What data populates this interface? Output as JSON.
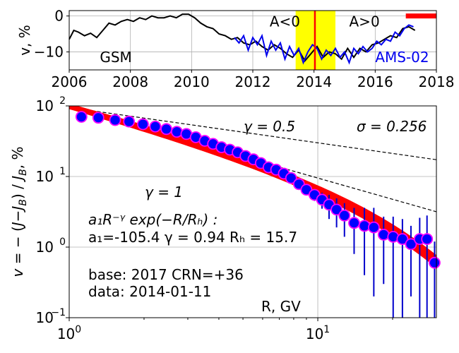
{
  "chart_data": [
    {
      "type": "line",
      "xlim": [
        2006,
        2018
      ],
      "ylim": [
        -15,
        1.5
      ],
      "ylabel": "v, %",
      "xticks": [
        2006,
        2008,
        2010,
        2012,
        2014,
        2016,
        2018
      ],
      "yticks": [
        0,
        -10
      ],
      "ytick_labels": [
        "0",
        "−10"
      ],
      "grid": true,
      "series": [
        {
          "name": "GSM",
          "color": "#000000",
          "x": [
            2006.0,
            2006.15,
            2006.3,
            2006.5,
            2006.7,
            2006.9,
            2007.1,
            2007.3,
            2007.5,
            2007.7,
            2007.9,
            2008.1,
            2008.3,
            2008.5,
            2008.7,
            2008.9,
            2009.1,
            2009.3,
            2009.5,
            2009.7,
            2009.9,
            2010.1,
            2010.3,
            2010.5,
            2010.7,
            2010.9,
            2011.1,
            2011.3,
            2011.5,
            2011.7,
            2011.9,
            2012.1,
            2012.3,
            2012.5,
            2012.7,
            2012.9,
            2013.1,
            2013.3,
            2013.5,
            2013.7,
            2013.9,
            2014.1,
            2014.3,
            2014.5,
            2014.7,
            2014.9,
            2015.1,
            2015.3,
            2015.5,
            2015.7,
            2015.9,
            2016.1,
            2016.3,
            2016.5,
            2016.7,
            2016.9,
            2017.1,
            2017.3
          ],
          "values": [
            -6.5,
            -4.0,
            -4.5,
            -5.5,
            -4.8,
            -6.0,
            -4.0,
            -2.0,
            -2.5,
            -1.5,
            -1.0,
            -1.5,
            -0.5,
            -1.0,
            0.0,
            -0.5,
            -0.5,
            0.0,
            -0.5,
            0.5,
            0.5,
            -0.5,
            -2.0,
            -3.0,
            -3.5,
            -5.0,
            -5.5,
            -6.5,
            -6.0,
            -7.5,
            -8.0,
            -7.0,
            -8.5,
            -9.5,
            -8.0,
            -9.0,
            -10.5,
            -11.5,
            -9.5,
            -12.5,
            -10.5,
            -8.5,
            -11.5,
            -10.0,
            -10.5,
            -12.0,
            -9.0,
            -11.5,
            -9.0,
            -10.0,
            -8.0,
            -7.5,
            -6.5,
            -5.5,
            -6.0,
            -3.5,
            -3.0,
            -4.0
          ]
        },
        {
          "name": "AMS-02",
          "color": "#0000ee",
          "x": [
            2011.4,
            2011.55,
            2011.7,
            2011.85,
            2012.0,
            2012.15,
            2012.3,
            2012.45,
            2012.6,
            2012.75,
            2012.9,
            2013.05,
            2013.2,
            2013.35,
            2013.5,
            2013.65,
            2013.8,
            2013.95,
            2014.1,
            2014.25,
            2014.4,
            2014.55,
            2014.7,
            2014.85,
            2015.0,
            2015.15,
            2015.3,
            2015.45,
            2015.6,
            2015.75,
            2015.9,
            2016.05,
            2016.2,
            2016.35,
            2016.5,
            2016.65,
            2016.8,
            2016.95,
            2017.1,
            2017.25
          ],
          "values": [
            -6.0,
            -7.5,
            -5.5,
            -9.5,
            -6.0,
            -8.0,
            -5.5,
            -11.0,
            -7.0,
            -9.5,
            -7.5,
            -12.0,
            -8.5,
            -11.0,
            -9.0,
            -13.0,
            -10.0,
            -8.0,
            -9.0,
            -12.0,
            -9.5,
            -11.0,
            -9.0,
            -11.5,
            -10.0,
            -13.0,
            -9.0,
            -10.5,
            -8.5,
            -10.0,
            -9.0,
            -7.0,
            -8.0,
            -6.5,
            -7.0,
            -4.5,
            -5.5,
            -3.5,
            -2.5,
            -3.0
          ]
        }
      ],
      "regions": [
        {
          "x0": 2013.4,
          "x1": 2014.7,
          "color": "#ffff00"
        }
      ],
      "vlines": [
        {
          "x": 2014.03,
          "color": "#ff0000"
        }
      ],
      "marker_bar": {
        "x0": 2017.0,
        "x1": 2018.0,
        "y": 0.0,
        "color": "#ff0000"
      },
      "annotations": [
        {
          "text": "GSM",
          "x": 2007.0,
          "y": -11.5,
          "color": "#000000"
        },
        {
          "text": "AMS-02",
          "x": 2016.0,
          "y": -11.5,
          "color": "#0000ee"
        },
        {
          "text": "A<0",
          "x": 2012.55,
          "y": -1.5,
          "color": "#000000"
        },
        {
          "text": "A>0",
          "x": 2015.15,
          "y": -1.5,
          "color": "#000000"
        }
      ]
    },
    {
      "type": "scatter",
      "xscale": "log",
      "yscale": "log",
      "xlim": [
        1.0,
        30.0
      ],
      "ylim": [
        0.1,
        100.0
      ],
      "xlabel": "R, GV",
      "ylabel": "v = − (J−J_B)/J_B, %",
      "xticks": [
        1,
        10
      ],
      "yticks": [
        0.1,
        1,
        10,
        100
      ],
      "grid": true,
      "points": {
        "x": [
          1.12,
          1.31,
          1.53,
          1.74,
          1.98,
          2.22,
          2.46,
          2.71,
          2.96,
          3.23,
          3.51,
          3.79,
          4.1,
          4.43,
          4.76,
          5.12,
          5.51,
          5.9,
          6.34,
          6.8,
          7.3,
          7.81,
          8.4,
          9.0,
          9.7,
          10.4,
          11.1,
          11.9,
          12.8,
          14.0,
          15.4,
          16.8,
          18.4,
          20.1,
          21.9,
          23.7,
          25.7,
          27.5,
          29.5
        ],
        "y": [
          70,
          68,
          63,
          60,
          55,
          51,
          47,
          43,
          40,
          36,
          32,
          29,
          26,
          24,
          22,
          19.5,
          17.5,
          15.5,
          13.5,
          12.5,
          11,
          9.5,
          7.8,
          6.5,
          5.5,
          4.7,
          4.0,
          3.4,
          2.8,
          2.2,
          2.0,
          1.9,
          1.5,
          1.4,
          1.3,
          1.1,
          1.3,
          1.3,
          0.6
        ],
        "y_error": [
          2,
          2,
          2,
          2,
          2,
          2,
          2,
          2,
          2,
          2,
          2,
          2,
          1.5,
          1.5,
          1.5,
          1.5,
          1.5,
          1.5,
          1.5,
          1.5,
          1.5,
          1.5,
          1.0,
          1.0,
          1.0,
          1.2,
          1.5,
          1.5,
          1.4,
          1.4,
          1.6,
          1.7,
          1.2,
          1.3,
          1.2,
          0.9,
          1.3,
          1.5,
          0.6
        ],
        "fill": "#0000ff",
        "edge": "#ff00ff"
      },
      "lines": [
        {
          "name": "γ = 0.5",
          "points": [
            [
              1.0,
              95.0
            ],
            [
              30.0,
              17.3
            ]
          ],
          "style": "dashed"
        },
        {
          "name": "γ = 1",
          "points": [
            [
              1.0,
              95.0
            ],
            [
              30.0,
              3.17
            ]
          ],
          "style": "dashed"
        }
      ],
      "fit": {
        "formula": "a₁R⁻ᵞ exp(−R/R_H):",
        "a1": -105.4,
        "gamma": 0.94,
        "RH": 15.7,
        "band_color": "#ff0000"
      },
      "text": {
        "gamma_05": "γ = 0.5",
        "gamma_1": "γ = 1",
        "sigma": "σ = 0.256",
        "formula_line": "a₁R⁻ᵞ exp(−R/Rₕ) :",
        "params_line": "a₁=-105.4   γ = 0.94   Rₕ = 15.7",
        "base_line": "base: 2017   CRN=+36",
        "data_line": "data: 2014-01-11",
        "xlabel": "R, GV"
      }
    }
  ]
}
